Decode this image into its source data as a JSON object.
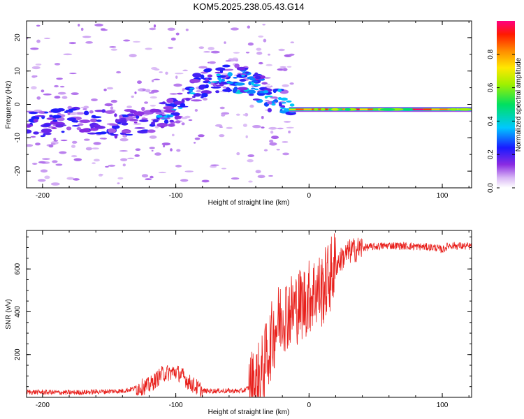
{
  "title": "KOM5.2025.238.05.43.G14",
  "chart_data": [
    {
      "type": "heatmap",
      "name": "spectrogram",
      "xlabel": "Height of straight line (km)",
      "ylabel": "Frequency (Hz)",
      "xlim": [
        -212,
        122
      ],
      "ylim": [
        -25,
        25
      ],
      "xticks": [
        -200,
        -100,
        0,
        100
      ],
      "xtick_labels": [
        "-200",
        "-100",
        "0",
        "100"
      ],
      "yticks": [
        -20,
        -10,
        0,
        10,
        20
      ],
      "ytick_labels": [
        "-20",
        "-10",
        "0",
        "10",
        "20"
      ],
      "ridge": {
        "description": "main spectral ridge (height km, frequency Hz)",
        "x": [
          -212,
          -180,
          -150,
          -120,
          -100,
          -85,
          -75,
          -60,
          -45,
          -30,
          -20,
          -10,
          0,
          10,
          20,
          60,
          100,
          122
        ],
        "y": [
          -6,
          -5,
          -6,
          -5,
          -2,
          5,
          7,
          8,
          7,
          2,
          0,
          -1,
          -2,
          -2,
          -1.5,
          -1.5,
          -1.5,
          -1.5
        ]
      },
      "carrier": {
        "x": [
          -15,
          122
        ],
        "frequency": -1.5,
        "peak_amplitude": 1.0
      },
      "colorbar": {
        "label": "Normalized spectral amplitude",
        "range": [
          0,
          1
        ],
        "ticks": [
          0,
          0.2,
          0.4,
          0.6,
          0.8
        ],
        "tick_labels": [
          "0.0",
          "0.2",
          "0.4",
          "0.6",
          "0.8"
        ]
      }
    },
    {
      "type": "line",
      "name": "snr",
      "xlabel": "Height of straight line (km)",
      "ylabel": "SNR (v/v)",
      "xlim": [
        -212,
        122
      ],
      "ylim": [
        0,
        780
      ],
      "xticks": [
        -200,
        -100,
        0,
        100
      ],
      "xtick_labels": [
        "-200",
        "-100",
        "0",
        "100"
      ],
      "yticks": [
        200,
        400,
        600
      ],
      "ytick_labels": [
        "200",
        "400",
        "600"
      ],
      "series": [
        {
          "name": "SNR",
          "color": "#e8201c",
          "x": [
            -212,
            -180,
            -140,
            -120,
            -110,
            -100,
            -95,
            -90,
            -80,
            -50,
            -40,
            -35,
            -30,
            -25,
            -20,
            -15,
            -10,
            -5,
            0,
            5,
            10,
            15,
            20,
            25,
            30,
            40,
            60,
            80,
            95,
            100,
            105,
            122
          ],
          "y": [
            25,
            22,
            30,
            55,
            110,
            120,
            100,
            70,
            30,
            30,
            60,
            120,
            230,
            330,
            390,
            400,
            420,
            440,
            470,
            500,
            500,
            560,
            620,
            650,
            680,
            700,
            710,
            705,
            700,
            690,
            710,
            705
          ]
        }
      ]
    }
  ]
}
